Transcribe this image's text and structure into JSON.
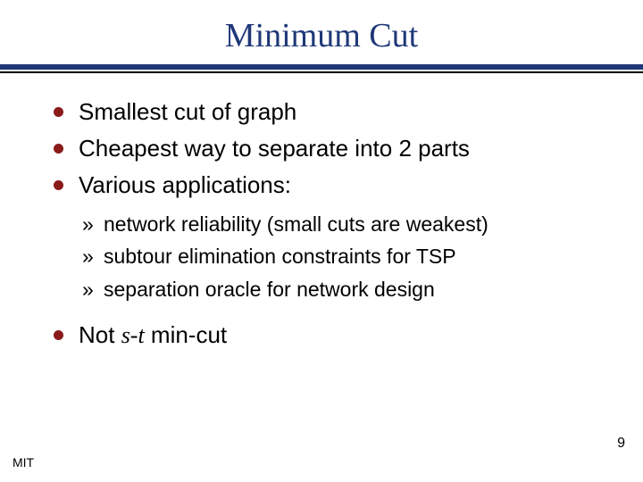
{
  "slide": {
    "title": "Minimum Cut",
    "title_color": "#1f3878",
    "title_fontsize": 38,
    "rule_thick_color": "#1f3878",
    "rule_thin_color": "#000000",
    "bullet_color": "#8b1a1a",
    "bullet_fontsize": 26,
    "sub_fontsize": 23,
    "text_color": "#000000",
    "bullets_top": [
      "Smallest cut of graph",
      "Cheapest way to separate into 2 parts",
      "Various applications:"
    ],
    "sub_bullets": [
      "network reliability (small cuts are weakest)",
      "subtour elimination constraints for TSP",
      "separation oracle for network design"
    ],
    "not_prefix": "Not ",
    "not_italic": "s-t",
    "not_suffix": " min-cut",
    "footer_left": "MIT",
    "footer_left_fontsize": 14,
    "page_number": "9",
    "page_number_fontsize": 16,
    "background_color": "#ffffff"
  }
}
